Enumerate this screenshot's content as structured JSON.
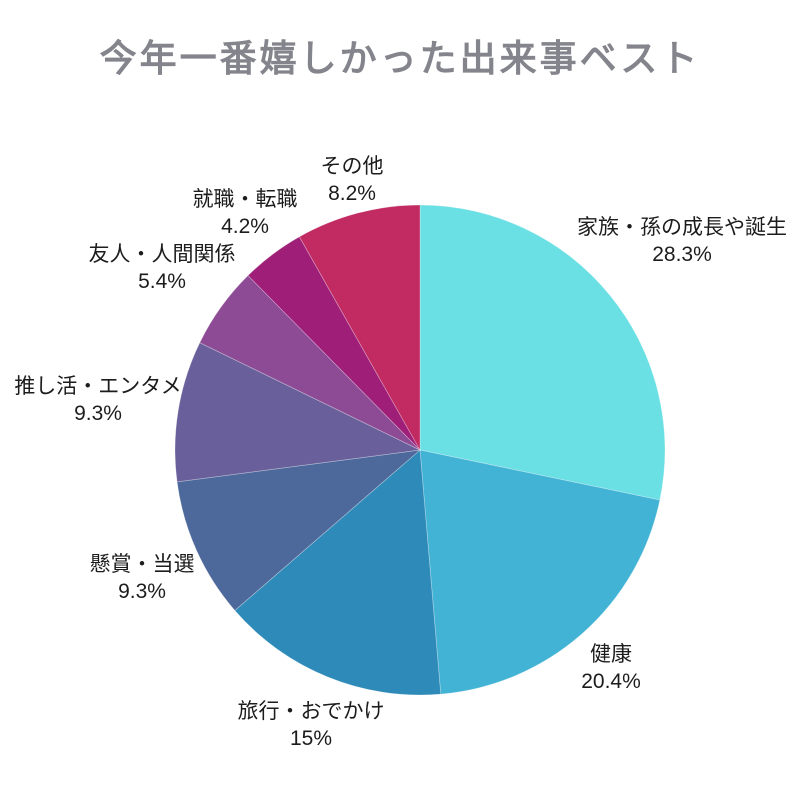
{
  "title": "今年一番嬉しかった出来事ベスト",
  "colors": {
    "background": "#ffffff",
    "title_text": "#84848c",
    "label_text": "#1c1c1c",
    "slice_separator": "rgba(255,255,255,0.35)"
  },
  "chart_data": {
    "type": "pie",
    "title": "今年一番嬉しかった出来事ベスト",
    "start_angle_deg": 0,
    "direction": "clockwise",
    "legend_position": "labels-around-pie",
    "grid": false,
    "slices": [
      {
        "label": "家族・孫の成長や誕生",
        "value": 28.3,
        "pct_label": "28.3%",
        "color": "#6be0e4"
      },
      {
        "label": "健康",
        "value": 20.4,
        "pct_label": "20.4%",
        "color": "#42b3d5"
      },
      {
        "label": "旅行・おでかけ",
        "value": 15,
        "pct_label": "15%",
        "color": "#2e8ab8"
      },
      {
        "label": "懸賞・当選",
        "value": 9.3,
        "pct_label": "9.3%",
        "color": "#4d689b"
      },
      {
        "label": "推し活・エンタメ",
        "value": 9.3,
        "pct_label": "9.3%",
        "color": "#69609b"
      },
      {
        "label": "友人・人間関係",
        "value": 5.4,
        "pct_label": "5.4%",
        "color": "#8c4b94"
      },
      {
        "label": "就職・転職",
        "value": 4.2,
        "pct_label": "4.2%",
        "color": "#9e1e78"
      },
      {
        "label": "その他",
        "value": 8.2,
        "pct_label": "8.2%",
        "color": "#c22a62"
      }
    ]
  }
}
